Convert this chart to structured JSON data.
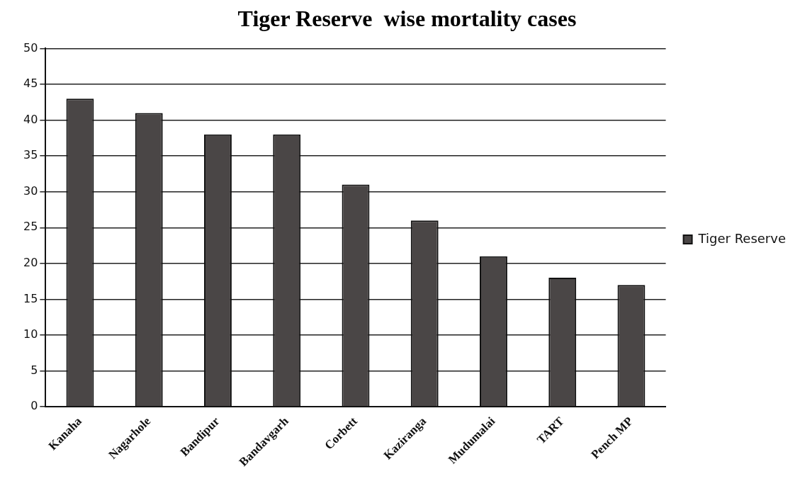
{
  "chart_data": {
    "type": "bar",
    "title": "Tiger Reserve  wise mortality cases",
    "categories": [
      "Kanaha",
      "Nagarhole",
      "Bandipur",
      "Bandavgarh",
      "Corbett",
      "Kaziranga",
      "Mudumalai",
      "TART",
      "Pench MP"
    ],
    "series": [
      {
        "name": "Tiger Reserve",
        "color": "#4a4646",
        "values": [
          43,
          41,
          38,
          38,
          31,
          26,
          21,
          18,
          17
        ]
      }
    ],
    "ylim": [
      0,
      50
    ],
    "yticks": [
      0,
      5,
      10,
      15,
      20,
      25,
      30,
      35,
      40,
      45,
      50
    ],
    "grid": "y",
    "legend": "right"
  }
}
